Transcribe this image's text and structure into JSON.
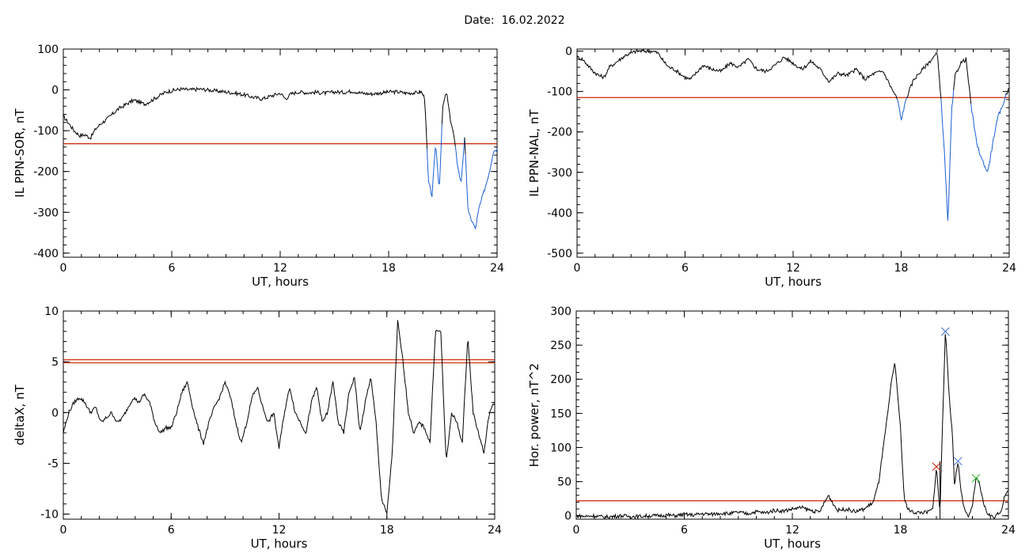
{
  "figure": {
    "date_label": "Date:",
    "date_value": "16.02.2022"
  },
  "colors": {
    "curve": "#000000",
    "highlight": "#1a5fd6",
    "threshold": "#cc2200",
    "marker_blue": "#3a6fd0",
    "marker_green": "#22bb22",
    "marker_red": "#cc2200",
    "marker_black": "#000000"
  },
  "chart_data": [
    {
      "id": "p1",
      "type": "line",
      "title": "",
      "xlabel": "UT, hours",
      "ylabel": "IL PPN-SOR, nT",
      "xlim": [
        0,
        24
      ],
      "ylim": [
        -410,
        100
      ],
      "xticks": [
        0,
        6,
        12,
        18,
        24
      ],
      "yticks": [
        -400,
        -300,
        -200,
        -100,
        0,
        100
      ],
      "threshold": [
        -132
      ],
      "highlight_below_threshold": true,
      "x": [
        0,
        0.3,
        0.6,
        0.9,
        1.2,
        1.5,
        1.8,
        2.1,
        2.4,
        2.7,
        3,
        3.3,
        3.6,
        3.9,
        4.2,
        4.5,
        4.8,
        5.1,
        5.4,
        5.7,
        6,
        6.5,
        7,
        7.5,
        8,
        8.5,
        9,
        9.5,
        10,
        10.5,
        11,
        11.5,
        12,
        12.3,
        12.6,
        13,
        13.5,
        14,
        14.5,
        15,
        15.5,
        16,
        16.5,
        17,
        17.5,
        18,
        18.5,
        19,
        19.5,
        19.8,
        20,
        20.2,
        20.4,
        20.6,
        20.8,
        21,
        21.2,
        21.4,
        21.6,
        21.8,
        22,
        22.2,
        22.4,
        22.6,
        22.8,
        23,
        23.2,
        23.4,
        23.6,
        23.8,
        24
      ],
      "y": [
        -65,
        -82,
        -100,
        -112,
        -110,
        -118,
        -95,
        -82,
        -72,
        -60,
        -48,
        -40,
        -32,
        -25,
        -30,
        -35,
        -28,
        -20,
        -12,
        -5,
        -2,
        2,
        0,
        2,
        0,
        -3,
        -5,
        -8,
        -12,
        -18,
        -22,
        -15,
        -8,
        -22,
        -10,
        -5,
        -7,
        -6,
        -8,
        -5,
        -6,
        -3,
        -8,
        -10,
        -8,
        -5,
        -5,
        -8,
        -7,
        -5,
        -20,
        -225,
        -260,
        -130,
        -245,
        -40,
        -5,
        -68,
        -110,
        -180,
        -230,
        -120,
        -300,
        -320,
        -340,
        -290,
        -260,
        -230,
        -195,
        -150,
        -145
      ]
    },
    {
      "id": "p2",
      "type": "line",
      "title": "",
      "xlabel": "UT, hours",
      "ylabel": "IL PPN-NAL, nT",
      "xlim": [
        0,
        24
      ],
      "ylim": [
        -510,
        5
      ],
      "xticks": [
        0,
        6,
        12,
        18,
        24
      ],
      "yticks": [
        -500,
        -400,
        -300,
        -200,
        -100,
        0
      ],
      "threshold": [
        -115
      ],
      "highlight_below_threshold": true,
      "x": [
        0,
        0.3,
        0.6,
        0.9,
        1.2,
        1.5,
        1.8,
        2.1,
        2.4,
        2.7,
        3,
        3.3,
        3.6,
        3.9,
        4.2,
        4.5,
        4.8,
        5.1,
        5.4,
        5.7,
        6,
        6.3,
        6.6,
        7,
        7.5,
        8,
        8.5,
        9,
        9.5,
        10,
        10.5,
        11,
        11.5,
        12,
        12.5,
        13,
        13.5,
        14,
        14.5,
        15,
        15.5,
        16,
        16.5,
        17,
        17.5,
        17.8,
        18,
        18.3,
        18.7,
        19,
        19.5,
        19.8,
        20,
        20.2,
        20.4,
        20.6,
        20.8,
        21,
        21.3,
        21.6,
        21.9,
        22.2,
        22.5,
        22.8,
        23,
        23.2,
        23.4,
        23.6,
        23.8,
        24
      ],
      "y": [
        -15,
        -20,
        -35,
        -50,
        -60,
        -65,
        -40,
        -30,
        -20,
        -10,
        -5,
        0,
        0,
        0,
        0,
        -5,
        -25,
        -40,
        -45,
        -55,
        -65,
        -70,
        -55,
        -35,
        -45,
        -50,
        -30,
        -40,
        -20,
        -45,
        -50,
        -35,
        -15,
        -30,
        -45,
        -25,
        -45,
        -75,
        -55,
        -60,
        -45,
        -70,
        -55,
        -50,
        -95,
        -120,
        -170,
        -115,
        -70,
        -55,
        -30,
        -15,
        -5,
        -110,
        -250,
        -430,
        -150,
        -60,
        -30,
        -20,
        -140,
        -230,
        -270,
        -300,
        -250,
        -200,
        -160,
        -140,
        -110,
        -90
      ]
    },
    {
      "id": "p3",
      "type": "line",
      "title": "",
      "xlabel": "UT, hours",
      "ylabel": "deltaX, nT",
      "xlim": [
        0,
        24
      ],
      "ylim": [
        -10.5,
        10
      ],
      "xticks": [
        0,
        6,
        12,
        18,
        24
      ],
      "yticks": [
        -10,
        -5,
        0,
        5,
        10
      ],
      "threshold": [
        5.2,
        4.9
      ],
      "highlight_below_threshold": false,
      "x": [
        0,
        0.3,
        0.6,
        0.9,
        1.2,
        1.5,
        1.8,
        2.1,
        2.4,
        2.7,
        3,
        3.3,
        3.6,
        3.9,
        4.2,
        4.5,
        4.8,
        5.1,
        5.4,
        5.7,
        6,
        6.3,
        6.6,
        6.9,
        7.2,
        7.5,
        7.8,
        8.1,
        8.4,
        8.7,
        9,
        9.3,
        9.6,
        9.9,
        10.2,
        10.5,
        10.8,
        11.1,
        11.4,
        11.7,
        12,
        12.3,
        12.6,
        12.9,
        13.2,
        13.5,
        13.8,
        14.1,
        14.4,
        14.7,
        15,
        15.3,
        15.6,
        15.9,
        16.2,
        16.5,
        16.8,
        17.1,
        17.4,
        17.7,
        18,
        18.3,
        18.6,
        18.9,
        19.2,
        19.5,
        19.8,
        20.1,
        20.4,
        20.7,
        21,
        21.3,
        21.6,
        21.9,
        22.2,
        22.5,
        22.8,
        23.1,
        23.4,
        23.7,
        24
      ],
      "y": [
        -2,
        0,
        1,
        1.5,
        1,
        0,
        0.5,
        -1,
        -0.5,
        0,
        -1,
        -0.5,
        0.5,
        1.5,
        1,
        1.8,
        1,
        -1,
        -2,
        -1.5,
        -1.5,
        0,
        2,
        3,
        0.5,
        -1.5,
        -3,
        -1,
        0.5,
        1.5,
        3,
        1.5,
        -1,
        -3,
        -1,
        1.5,
        2.5,
        0.5,
        -1,
        0,
        -3.5,
        0,
        2.5,
        0,
        -1,
        -2,
        1,
        2.5,
        -1,
        0,
        3,
        -1,
        -2,
        2,
        3.5,
        -2,
        1,
        3.5,
        -1,
        -8.5,
        -10,
        -4,
        9,
        5,
        0,
        -2,
        -1,
        -1.5,
        -3,
        8,
        8,
        -5,
        0,
        -1,
        -3,
        7.5,
        0,
        -2,
        -4,
        0,
        1
      ]
    },
    {
      "id": "p4",
      "type": "line",
      "title": "",
      "xlabel": "UT, hours",
      "ylabel": "Hor. power, nT^2",
      "xlim": [
        0,
        24
      ],
      "ylim": [
        -5,
        300
      ],
      "xticks": [
        0,
        6,
        12,
        18,
        24
      ],
      "yticks": [
        0,
        50,
        100,
        150,
        200,
        250,
        300
      ],
      "threshold": [
        22
      ],
      "highlight_below_threshold": false,
      "vertical_marker_x": 20.2,
      "x": [
        0,
        0.5,
        1,
        1.5,
        2,
        2.5,
        3,
        3.5,
        4,
        4.5,
        5,
        5.5,
        6,
        6.5,
        7,
        7.5,
        8,
        8.5,
        9,
        9.5,
        10,
        10.5,
        11,
        11.5,
        12,
        12.5,
        13,
        13.5,
        14,
        14.5,
        15,
        15.5,
        16,
        16.5,
        16.8,
        17,
        17.3,
        17.5,
        17.7,
        18,
        18.2,
        18.4,
        18.7,
        19,
        19.5,
        19.8,
        20,
        20.2,
        20.3,
        20.5,
        20.7,
        20.9,
        21,
        21.2,
        21.4,
        21.6,
        21.8,
        22,
        22.2,
        22.4,
        22.6,
        22.8,
        23,
        23.2,
        23.4,
        23.6,
        23.8,
        24
      ],
      "y": [
        0,
        -1,
        0,
        -2,
        -1,
        0,
        -1,
        -1,
        0,
        0,
        1,
        0,
        2,
        1,
        3,
        2,
        4,
        3,
        5,
        3,
        6,
        4,
        8,
        7,
        10,
        12,
        8,
        5,
        30,
        8,
        10,
        6,
        10,
        20,
        50,
        90,
        150,
        195,
        225,
        130,
        30,
        10,
        5,
        5,
        5,
        10,
        72,
        3,
        100,
        270,
        180,
        115,
        45,
        80,
        30,
        5,
        -2,
        15,
        55,
        45,
        20,
        5,
        0,
        -2,
        2,
        8,
        30,
        35
      ]
    }
  ]
}
